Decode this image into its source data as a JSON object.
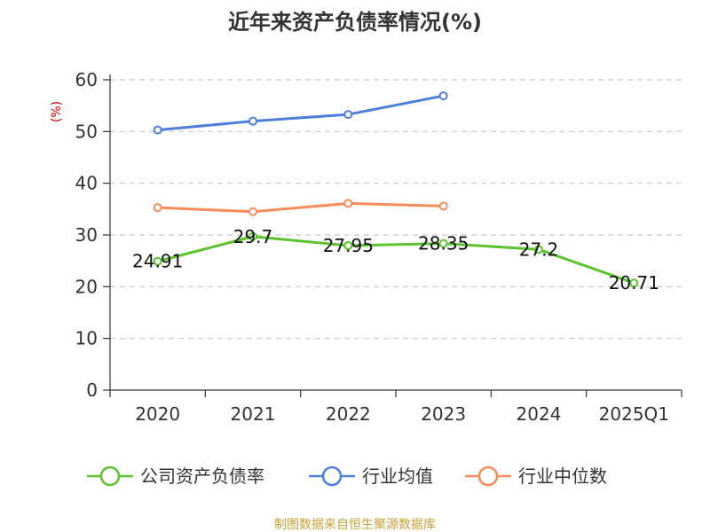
{
  "chart_data": {
    "type": "line",
    "title": "近年来资产负债率情况(%)",
    "ylabel": "(%)",
    "xlabel": "",
    "ylim": [
      0,
      60
    ],
    "yticks": [
      0,
      10,
      20,
      30,
      40,
      50,
      60
    ],
    "categories": [
      "2020",
      "2021",
      "2022",
      "2023",
      "2024",
      "2025Q1"
    ],
    "grid": true,
    "legend_position": "bottom",
    "series": [
      {
        "name": "公司资产负债率",
        "color": "#5cc22d",
        "values": [
          24.91,
          29.7,
          27.95,
          28.35,
          27.2,
          20.71
        ],
        "labels": [
          "24.91",
          "29.7",
          "27.95",
          "28.35",
          "27.2",
          "20.71"
        ]
      },
      {
        "name": "行业均值",
        "color": "#4f7fdb",
        "values": [
          50.3,
          52.0,
          53.3,
          56.9,
          null,
          null
        ]
      },
      {
        "name": "行业中位数",
        "color": "#f68c5c",
        "values": [
          35.3,
          34.5,
          36.1,
          35.6,
          null,
          null
        ]
      }
    ],
    "ylabel_color": "#cc0000",
    "source": "制图数据来自恒生聚源数据库",
    "source_color": "#c9a13a"
  }
}
